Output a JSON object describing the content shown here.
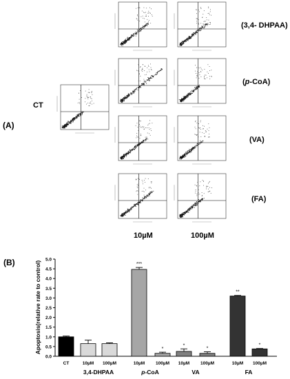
{
  "panel_a": {
    "label": "(A)",
    "ct_label": "CT",
    "row_labels": [
      "(3,4- DHPAA)",
      "(p-CoA)",
      "(VA)",
      "(FA)"
    ],
    "col_labels": [
      "10µM",
      "100µM"
    ]
  },
  "panel_b": {
    "label": "(B)"
  },
  "chart_data": {
    "type": "bar",
    "ylabel": "Apoptosis(relative rate to control)",
    "ylim": [
      0,
      5
    ],
    "yticks": [
      "0.0",
      "0.5",
      "1.0",
      "1.5",
      "2.0",
      "2.5",
      "3.0",
      "3.5",
      "4.0",
      "4.5",
      "5.0"
    ],
    "categories": [
      "CT",
      "10µM",
      "100µM",
      "10µM",
      "100µM",
      "10µM",
      "100µM",
      "10µM",
      "100µM"
    ],
    "values": [
      1.0,
      0.65,
      0.65,
      4.47,
      0.15,
      0.25,
      0.15,
      3.1,
      0.38
    ],
    "errors": [
      0.04,
      0.18,
      0.04,
      0.1,
      0.06,
      0.13,
      0.08,
      0.03,
      0.02
    ],
    "significance": [
      "",
      "",
      "",
      "***",
      "*",
      "*",
      "*",
      "**",
      "*"
    ],
    "colors": [
      "#000000",
      "#d9d9d9",
      "#d9d9d9",
      "#a6a6a6",
      "#a6a6a6",
      "#808080",
      "#808080",
      "#333333",
      "#333333"
    ],
    "groups": [
      {
        "label": "3,4-DHPAA",
        "italic_prefix": "",
        "rest": ""
      },
      {
        "label": "",
        "italic_prefix": "p",
        "rest": "-CoA"
      },
      {
        "label": "VA",
        "italic_prefix": "",
        "rest": ""
      },
      {
        "label": "FA",
        "italic_prefix": "",
        "rest": ""
      }
    ]
  }
}
